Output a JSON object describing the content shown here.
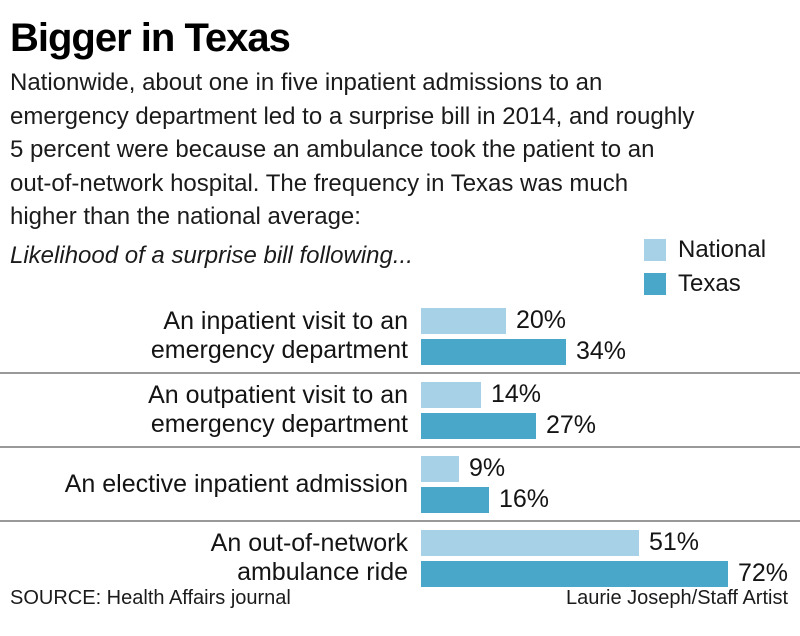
{
  "title": "Bigger in Texas",
  "intro": {
    "text": "Nationwide, about one in five inpatient admissions to an emergency department led to a surprise bill in 2014, and roughly 5 percent were because an ambulance took the patient to an out-of-network hospital. The frequency in Texas was much higher than the national average:",
    "lines": [
      "Nationwide, about one in five inpatient admissions to an",
      "emergency department led to a surprise bill in 2014, and roughly",
      "5 percent were because an ambulance took the patient to an",
      "out-of-network hospital. The frequency in Texas was much",
      "higher than the national average:"
    ]
  },
  "chart_data": {
    "type": "bar",
    "orientation": "horizontal",
    "subtitle": "Likelihood of a surprise bill following...",
    "categories": [
      "An inpatient visit to an emergency department",
      "An outpatient visit to an emergency department",
      "An elective inpatient admission",
      "An out-of-network ambulance ride"
    ],
    "category_line_breaks": [
      [
        "An inpatient visit to an",
        "emergency department"
      ],
      [
        "An outpatient visit to an",
        "emergency department"
      ],
      [
        "An elective inpatient admission"
      ],
      [
        "An out-of-network",
        "ambulance ride"
      ]
    ],
    "series": [
      {
        "name": "National",
        "color": "#a6d1e7",
        "values": [
          20,
          14,
          9,
          51
        ]
      },
      {
        "name": "Texas",
        "color": "#49a7ca",
        "values": [
          34,
          27,
          16,
          72
        ]
      }
    ],
    "value_suffix": "%",
    "xlim": [
      0,
      75
    ],
    "legend_position": "top-right",
    "grid": false,
    "divider_color": "#999999"
  },
  "footer": {
    "source": "SOURCE: Health Affairs journal",
    "credit": "Laurie Joseph/Staff Artist"
  }
}
